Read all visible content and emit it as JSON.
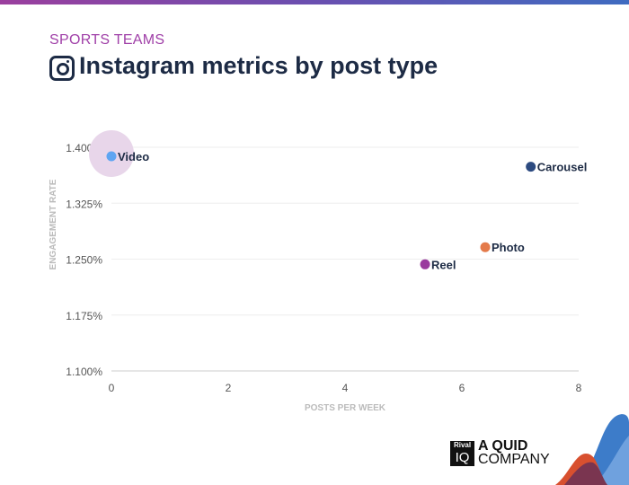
{
  "header": {
    "subtitle": "SPORTS TEAMS",
    "title": "Instagram metrics by post type",
    "icon": "instagram-icon"
  },
  "chart_data": {
    "type": "scatter",
    "xlabel": "POSTS PER WEEK",
    "ylabel": "ENGAGEMENT RATE",
    "xlim": [
      0,
      8
    ],
    "ylim": [
      1.1,
      1.4
    ],
    "x_ticks": [
      "0",
      "2",
      "4",
      "6",
      "8"
    ],
    "y_ticks": [
      "1.100%",
      "1.175%",
      "1.250%",
      "1.325%",
      "1.400%"
    ],
    "grid": true,
    "points": [
      {
        "name": "Video",
        "x": 0,
        "y": 1.388,
        "color": "#5ea5f2",
        "highlighted": true
      },
      {
        "name": "Carousel",
        "x": 7.18,
        "y": 1.374,
        "color": "#2c4a80"
      },
      {
        "name": "Photo",
        "x": 6.4,
        "y": 1.266,
        "color": "#e47a4a"
      },
      {
        "name": "Reel",
        "x": 5.37,
        "y": 1.243,
        "color": "#9a3a9e"
      }
    ]
  },
  "footer": {
    "logo_text": "Rival IQ",
    "logo_top": "Rival",
    "logo_bottom": "IQ",
    "tagline_1": "A QUID",
    "tagline_2": "COMPANY"
  }
}
